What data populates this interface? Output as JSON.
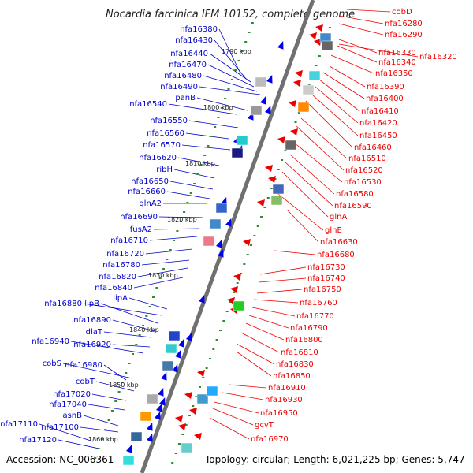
{
  "title": "Nocardia farcinica IFM 10152, complete genome",
  "accession": "Accession: NC_006361",
  "summary": "Topology: circular; Length: 6,021,225 bp; Genes: 5,747",
  "colors": {
    "left_label": "#0000cc",
    "right_label": "#ee0000",
    "left_line": "#0000cc",
    "right_line": "#ee0000",
    "backbone": "#808080",
    "tick": "#2e8b2e"
  },
  "kbp_marks": [
    "1790 kbp",
    "1800 kbp",
    "1810 kbp",
    "1820 kbp",
    "1830 kbp",
    "1840 kbp",
    "1850 kbp",
    "1860 kbp"
  ],
  "left_labels": [
    "nfa16380",
    "nfa16430",
    "nfa16440",
    "nfa16470",
    "nfa16480",
    "nfa16490",
    "panB",
    "nfa16540",
    "nfa16550",
    "nfa16560",
    "nfa16570",
    "nfa16620",
    "ribH",
    "nfa16650",
    "nfa16660",
    "glnA2",
    "nfa16690",
    "fusA2",
    "nfa16710",
    "nfa16720",
    "nfa16780",
    "nfa16820",
    "nfa16840",
    "lipA",
    "nfa16880",
    "lipB",
    "nfa16890",
    "dlaT",
    "nfa16940",
    "nfa16920",
    "cobS",
    "nfa16980",
    "cobT",
    "nfa17020",
    "nfa17040",
    "asnB",
    "nfa17110",
    "nfa17100",
    "nfa17120"
  ],
  "right_labels": [
    "cobD",
    "nfa16280",
    "nfa16290",
    "nfa16330",
    "nfa16340",
    "nfa16320",
    "nfa16350",
    "nfa16390",
    "nfa16400",
    "nfa16410",
    "nfa16420",
    "nfa16450",
    "nfa16460",
    "nfa16510",
    "nfa16520",
    "nfa16530",
    "nfa16580",
    "nfa16590",
    "glnA",
    "glnE",
    "nfa16630",
    "nfa16680",
    "nfa16730",
    "nfa16740",
    "nfa16750",
    "nfa16760",
    "nfa16770",
    "nfa16790",
    "nfa16800",
    "nfa16810",
    "nfa16830",
    "nfa16850",
    "nfa16910",
    "nfa16930",
    "nfa16950",
    "gcvT",
    "nfa16970"
  ]
}
